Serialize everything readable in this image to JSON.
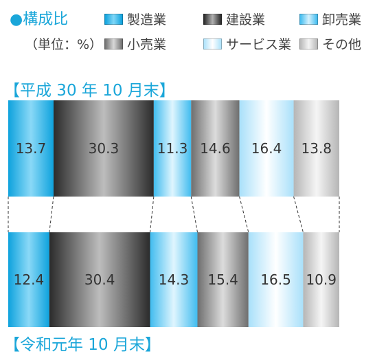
{
  "header": {
    "title": "●構成比",
    "unit": "（単位：%）"
  },
  "legend": [
    {
      "label": "製造業",
      "color": "#1ba9e1"
    },
    {
      "label": "建設業",
      "color": "#3a3a3a"
    },
    {
      "label": "卸売業",
      "color": "#5bc5f0"
    },
    {
      "label": "小売業",
      "color": "#8a8a8a"
    },
    {
      "label": "サービス業",
      "color": "#bfe8fb"
    },
    {
      "label": "その他",
      "color": "#c8c8c8"
    }
  ],
  "chart_data": {
    "type": "bar",
    "orientation": "horizontal-stacked-100",
    "categories": [
      "【平成 30 年 10 月末】",
      "【令和元年 10 月末】"
    ],
    "series": [
      {
        "name": "製造業",
        "values": [
          13.7,
          12.4
        ]
      },
      {
        "name": "建設業",
        "values": [
          30.3,
          30.4
        ]
      },
      {
        "name": "卸売業",
        "values": [
          11.3,
          14.3
        ]
      },
      {
        "name": "小売業",
        "values": [
          14.6,
          15.4
        ]
      },
      {
        "name": "サービス業",
        "values": [
          16.4,
          16.5
        ]
      },
      {
        "name": "その他",
        "values": [
          13.8,
          10.9
        ]
      }
    ],
    "colors": [
      "#1ba9e1",
      "#3a3a3a",
      "#5bc5f0",
      "#8a8a8a",
      "#bfe8fb",
      "#c8c8c8"
    ],
    "connector_lines": "dashed",
    "legend_position": "top"
  }
}
